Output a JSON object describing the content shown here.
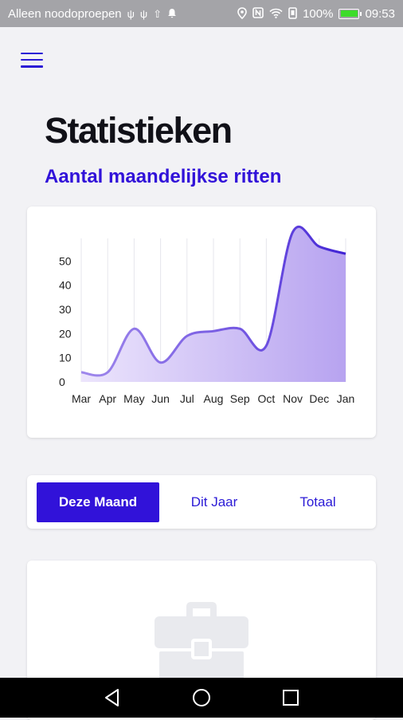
{
  "status_bar": {
    "carrier": "Alleen noodoproepen",
    "battery_percent": "100%",
    "battery_level": 1.0,
    "time": "09:53",
    "left_icons": [
      "usb-icon",
      "usb-icon",
      "upload-icon",
      "bell-icon"
    ],
    "right_icons": [
      "location-icon",
      "nfc-icon",
      "wifi-icon",
      "vibrate-icon"
    ]
  },
  "header": {
    "menu_icon": "hamburger-menu-icon",
    "title": "Statistieken"
  },
  "section": {
    "title": "Aantal maandelijkse ritten"
  },
  "colors": {
    "accent": "#3112d9",
    "chart_line": "#8a6fe0",
    "chart_fill": "#c9b9f5"
  },
  "chart_data": {
    "type": "area",
    "categories": [
      "Mar",
      "Apr",
      "May",
      "Jun",
      "Jul",
      "Aug",
      "Sep",
      "Oct",
      "Nov",
      "Dec",
      "Jan"
    ],
    "values": [
      4,
      4,
      22,
      8,
      19,
      21,
      22,
      15,
      62,
      56,
      53
    ],
    "yticks": [
      "0",
      "10",
      "20",
      "30",
      "40",
      "50"
    ],
    "ylim": [
      0,
      62
    ],
    "grid": "vertical",
    "title": "",
    "xlabel": "",
    "ylabel": ""
  },
  "period_tabs": [
    {
      "label": "Deze Maand",
      "active": true
    },
    {
      "label": "Dit Jaar",
      "active": false
    },
    {
      "label": "Totaal",
      "active": false
    }
  ],
  "empty_state": {
    "icon": "briefcase-icon"
  },
  "nav_bar": {
    "buttons": [
      "back-icon",
      "home-icon",
      "recent-apps-icon"
    ]
  }
}
